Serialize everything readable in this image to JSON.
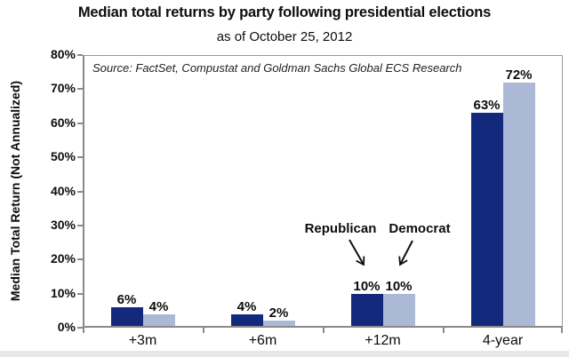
{
  "chart_data": {
    "type": "bar",
    "title": "Median total returns by party following presidential elections",
    "subtitle": "as of October 25, 2012",
    "source_note": "Source: FactSet, Compustat and Goldman Sachs Global ECS Research",
    "ylabel": "Median Total Return (Not Annualized)",
    "xlabel": "",
    "categories": [
      "+3m",
      "+6m",
      "+12m",
      "4-year"
    ],
    "series": [
      {
        "name": "Republican",
        "color": "#13297b",
        "values": [
          6,
          4,
          10,
          63
        ]
      },
      {
        "name": "Democrat",
        "color": "#abb9d6",
        "values": [
          4,
          2,
          10,
          72
        ]
      }
    ],
    "value_label_suffix": "%",
    "ylim": [
      0,
      80
    ],
    "ytick_step": 10,
    "ytick_suffix": "%",
    "grid": false,
    "legend_position": "inline-annotations",
    "annotations": [
      {
        "label": "Republican",
        "target_series": "Republican",
        "target_category": "+12m"
      },
      {
        "label": "Democrat",
        "target_series": "Democrat",
        "target_category": "+12m"
      }
    ]
  },
  "colors": {
    "republican_bar": "#13297b",
    "democrat_bar": "#abb9d6",
    "axis": "#8a8a8a",
    "text": "#0d0d0d",
    "bottom_strip": "#e8e8e8"
  }
}
